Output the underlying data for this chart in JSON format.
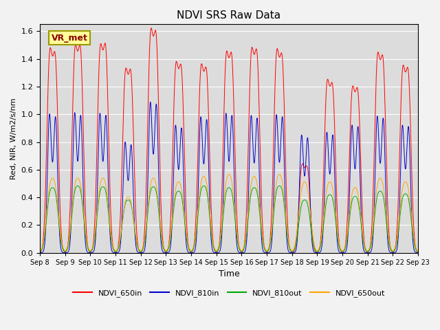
{
  "title": "NDVI SRS Raw Data",
  "xlabel": "Time",
  "ylabel": "Red, NIR, W/m2/s/nm",
  "ylim": [
    0.0,
    1.65
  ],
  "yticks": [
    0.0,
    0.2,
    0.4,
    0.6,
    0.8,
    1.0,
    1.2,
    1.4,
    1.6
  ],
  "x_tick_labels": [
    "Sep 8",
    "Sep 9",
    "Sep 10",
    "Sep 11",
    "Sep 12",
    "Sep 13",
    "Sep 14",
    "Sep 15",
    "Sep 16",
    "Sep 17",
    "Sep 18",
    "Sep 19",
    "Sep 20",
    "Sep 21",
    "Sep 22",
    "Sep 23"
  ],
  "annotation_text": "VR_met",
  "colors": {
    "NDVI_650in": "#FF0000",
    "NDVI_810in": "#0000CC",
    "NDVI_810out": "#00AA00",
    "NDVI_650out": "#FFA500"
  },
  "plot_bg": "#DCDCDC",
  "fig_bg": "#F2F2F2",
  "n_days": 15,
  "peaks_650in": [
    1.335,
    1.35,
    1.355,
    1.2,
    1.46,
    1.245,
    1.23,
    1.31,
    1.335,
    1.33,
    0.58,
    1.13,
    1.085,
    1.305,
    1.22
  ],
  "peaks_650in_2": [
    1.3,
    1.35,
    1.36,
    1.19,
    1.44,
    1.22,
    1.2,
    1.3,
    1.32,
    1.29,
    0.56,
    1.1,
    1.07,
    1.28,
    1.2
  ],
  "peaks_810in": [
    0.99,
    1.0,
    0.995,
    0.79,
    1.075,
    0.91,
    0.97,
    0.995,
    0.98,
    0.985,
    0.84,
    0.86,
    0.91,
    0.975,
    0.91
  ],
  "peaks_810in_2": [
    0.97,
    0.98,
    0.98,
    0.77,
    1.06,
    0.89,
    0.95,
    0.98,
    0.96,
    0.97,
    0.82,
    0.84,
    0.9,
    0.96,
    0.9
  ],
  "peaks_810out": [
    0.37,
    0.38,
    0.375,
    0.3,
    0.375,
    0.35,
    0.38,
    0.37,
    0.37,
    0.38,
    0.3,
    0.33,
    0.32,
    0.35,
    0.335
  ],
  "peaks_650out": [
    0.4,
    0.4,
    0.4,
    0.3,
    0.4,
    0.38,
    0.41,
    0.42,
    0.41,
    0.42,
    0.38,
    0.38,
    0.35,
    0.4,
    0.38
  ],
  "sigma": 0.09,
  "pts_per_day": 300
}
